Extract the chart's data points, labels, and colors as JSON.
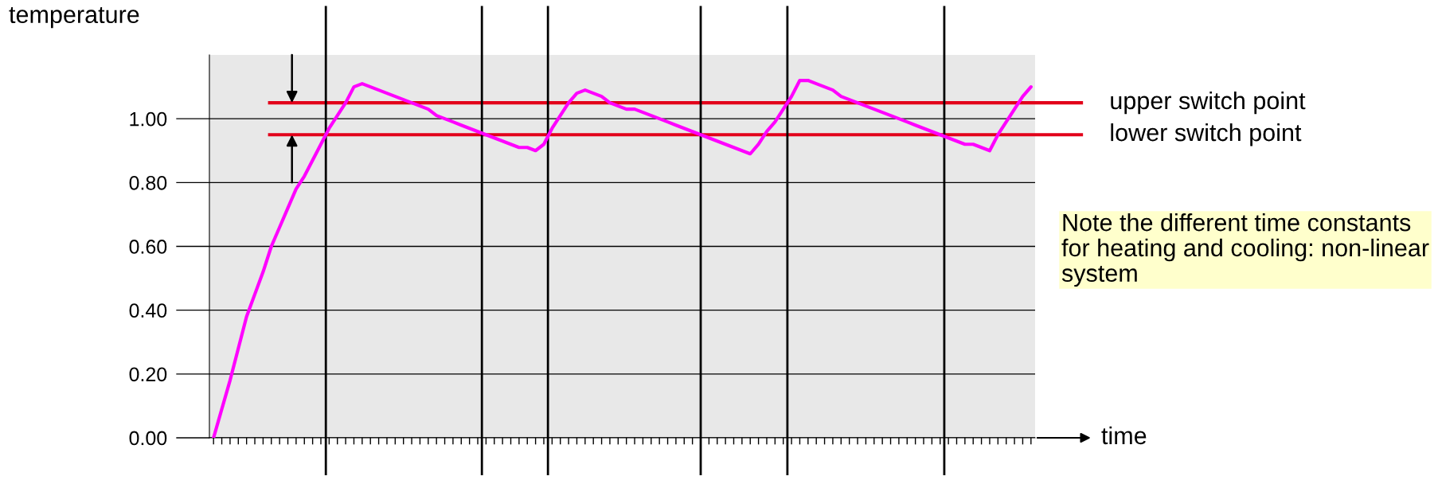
{
  "chart_data": {
    "type": "line",
    "xlabel": "time",
    "ylabel": "temperature",
    "categories": [
      null,
      null,
      null,
      null,
      null,
      null,
      null,
      null,
      null,
      null,
      null,
      null,
      null,
      null,
      null,
      null,
      null,
      null,
      null,
      null,
      null,
      null,
      null,
      null,
      null,
      null,
      null,
      null,
      null,
      null,
      null,
      null,
      null,
      null,
      null,
      null,
      null,
      null,
      null,
      null,
      null,
      null,
      null,
      null,
      null,
      null,
      null,
      null,
      null,
      null,
      null,
      null,
      null,
      null,
      null,
      null,
      null,
      null,
      null,
      null,
      null,
      null,
      null,
      null,
      null,
      null,
      null,
      null,
      null,
      null,
      null,
      null,
      null,
      null,
      null,
      null,
      null,
      null,
      null,
      null,
      null,
      null,
      null,
      null,
      null,
      null,
      null,
      null,
      null,
      null,
      null,
      null,
      null,
      null,
      null,
      null,
      null,
      null,
      null,
      null
    ],
    "series": [
      {
        "color": "#ff00ff",
        "values": [
          0.0,
          0.09,
          0.18,
          0.28,
          0.38,
          0.45,
          0.52,
          0.6,
          0.66,
          0.72,
          0.78,
          0.82,
          0.87,
          0.92,
          0.97,
          1.01,
          1.05,
          1.1,
          1.11,
          1.1,
          1.09,
          1.08,
          1.07,
          1.06,
          1.05,
          1.04,
          1.03,
          1.01,
          1.0,
          0.99,
          0.98,
          0.97,
          0.96,
          0.95,
          0.94,
          0.93,
          0.92,
          0.91,
          0.91,
          0.9,
          0.92,
          0.97,
          1.01,
          1.05,
          1.08,
          1.09,
          1.08,
          1.07,
          1.05,
          1.04,
          1.03,
          1.03,
          1.02,
          1.01,
          1.0,
          0.99,
          0.98,
          0.97,
          0.96,
          0.95,
          0.94,
          0.93,
          0.92,
          0.91,
          0.9,
          0.89,
          0.92,
          0.96,
          0.99,
          1.03,
          1.07,
          1.12,
          1.12,
          1.11,
          1.1,
          1.09,
          1.07,
          1.06,
          1.05,
          1.04,
          1.03,
          1.02,
          1.01,
          1.0,
          0.99,
          0.98,
          0.97,
          0.96,
          0.95,
          0.94,
          0.93,
          0.92,
          0.92,
          0.91,
          0.9,
          0.95,
          0.99,
          1.03,
          1.07,
          1.1
        ]
      }
    ],
    "ylim": [
      0,
      1.2
    ],
    "yticks": [
      {
        "value": 0,
        "label": "0.00"
      },
      {
        "value": 0.2,
        "label": "0.20"
      },
      {
        "value": 0.4,
        "label": "0.40"
      },
      {
        "value": 0.6,
        "label": "0.60"
      },
      {
        "value": 0.8,
        "label": "0.80"
      },
      {
        "value": 1.0,
        "label": "1.00"
      }
    ],
    "tick_labels": "y",
    "grid": "y",
    "line_style": "solid",
    "ref_lines": [
      {
        "axis": "y",
        "value": 1.05,
        "label": "upper switch point",
        "color": "#e2001a"
      },
      {
        "axis": "y",
        "value": 0.95,
        "label": "lower switch point",
        "color": "#e2001a"
      }
    ],
    "annotations": [
      "Note the different time constants for heating and cooling: non-linear system"
    ]
  }
}
